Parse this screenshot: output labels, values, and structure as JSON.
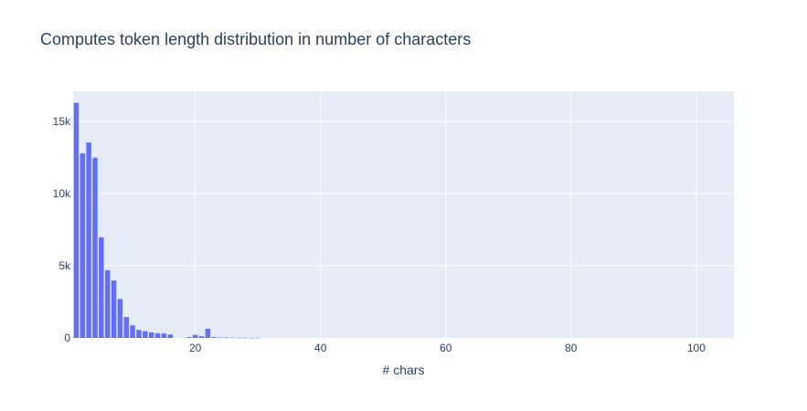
{
  "chart_data": {
    "type": "bar",
    "title": "Computes token length distribution in number of characters",
    "xlabel": "# chars",
    "ylabel": "",
    "xlim": [
      0.5,
      106
    ],
    "ylim": [
      0,
      17100
    ],
    "x_ticks": [
      {
        "value": 20,
        "label": "20"
      },
      {
        "value": 40,
        "label": "40"
      },
      {
        "value": 60,
        "label": "60"
      },
      {
        "value": 80,
        "label": "80"
      },
      {
        "value": 100,
        "label": "100"
      }
    ],
    "y_ticks": [
      {
        "value": 0,
        "label": "0"
      },
      {
        "value": 5000,
        "label": "5k"
      },
      {
        "value": 10000,
        "label": "10k"
      },
      {
        "value": 15000,
        "label": "15k"
      }
    ],
    "x": [
      1,
      2,
      3,
      4,
      5,
      6,
      7,
      8,
      9,
      10,
      11,
      12,
      13,
      14,
      15,
      16,
      17,
      18,
      19,
      20,
      21,
      22,
      23,
      24,
      25,
      26,
      27,
      28,
      29,
      30
    ],
    "values": [
      16300,
      12800,
      13550,
      12500,
      6980,
      4700,
      3980,
      2700,
      1450,
      870,
      560,
      470,
      380,
      330,
      310,
      240,
      0,
      0,
      60,
      210,
      110,
      640,
      60,
      30,
      20,
      20,
      10,
      10,
      5,
      5
    ],
    "bar_color": "#636efa",
    "plot_bg": "#e5ecf6",
    "grid": true
  }
}
